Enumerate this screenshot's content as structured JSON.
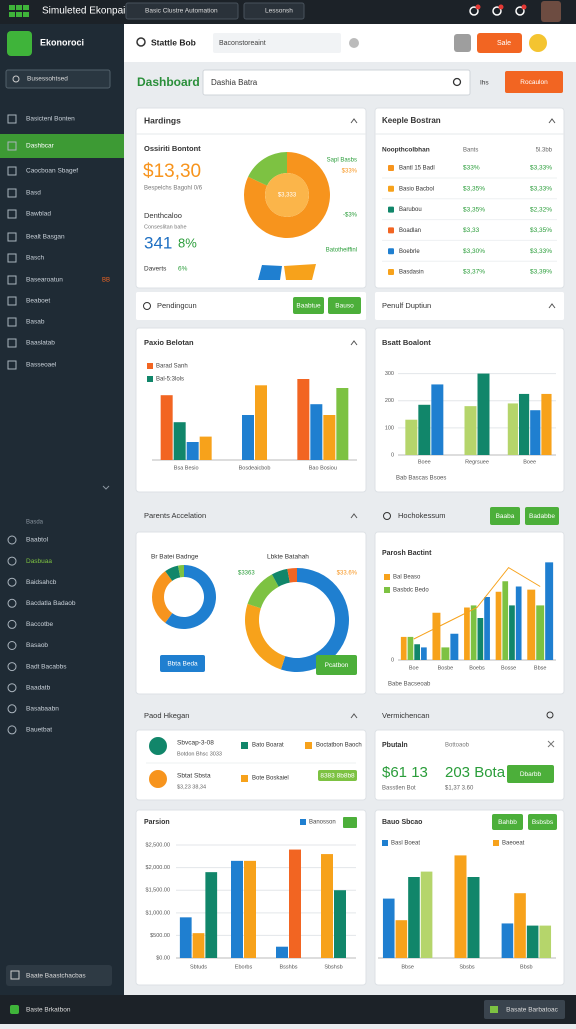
{
  "topbar": {
    "app_name": "Simuleted Ekonpai",
    "tabs": [
      "Basic Clustre Automation",
      "Lessonsh"
    ]
  },
  "sidebar": {
    "title": "Ekonoroci",
    "search": "Busessohtsed",
    "menu": [
      "Basictenl Bonten",
      "Dashbcar",
      "Caocboan Sbagef",
      "Basd",
      "Bawblad",
      "Bealt Basgan",
      "Basch",
      "Basearoatun",
      "Beaboet",
      "Basab",
      "Baaslatab",
      "Basseoael"
    ],
    "badge": "BB",
    "section": "Basda",
    "menu2": [
      "Baabtol",
      "Dasbuaa",
      "Baidsahcb",
      "Bacdatla Badaob",
      "Baccotbe",
      "Basaob",
      "Badt Bacabbs",
      "Baadatb",
      "Basabaabn",
      "Bauetbat"
    ],
    "footer": "Baate Baastchacbas"
  },
  "header": {
    "search_label": "Stattle Bob",
    "input": "Baconstoreaint",
    "button": "Sale"
  },
  "toolbar": {
    "title": "Dashboard",
    "search": "Dashia Batra",
    "link": "Ihs",
    "button": "Rocaulon"
  },
  "hardings": {
    "title": "Hardings",
    "subtitle": "Ossiriti Bontont",
    "amount": "$13,30",
    "amount_note": "Bespelchs Bagohl 0/6",
    "label2": "Denthcaloo",
    "note2": "Conseslitan bahe",
    "count": "341",
    "pct": "8%",
    "label3": "Daverts",
    "pct3": "6%",
    "legend": [
      "Sapl Basbs",
      "$33%",
      "-$3%",
      "Batotheiffinl"
    ],
    "chart": {
      "type": "pie",
      "center": "$3,333",
      "values": [
        82,
        18
      ],
      "colors": [
        "#f7941d",
        "#7dc242"
      ]
    }
  },
  "keeple": {
    "title": "Keeple Bostran",
    "header": [
      "Noopthcolbhan",
      "Bants",
      "5l.3bb"
    ],
    "icon_colors": [
      "#f7941d",
      "#f7a21b",
      "#11866a",
      "#f26522",
      "#1f7fd0",
      "#f7a21b"
    ],
    "rows": [
      [
        "Bantl 15 Badl",
        "$33%",
        "$3,33%"
      ],
      [
        "Basio Bacbol",
        "$3,35%",
        "$3,33%"
      ],
      [
        "Barubou",
        "$3,35%",
        "$2,32%"
      ],
      [
        "Boadlan",
        "$3,33",
        "$3,35%"
      ],
      [
        "Boebrle",
        "$3,30%",
        "$3,33%"
      ],
      [
        "Basdasin",
        "$3,37%",
        "$3,39%"
      ]
    ]
  },
  "pending": {
    "title": "Pendingcun",
    "buttons": [
      "Baabtue",
      "Bauso"
    ]
  },
  "penulf": {
    "title": "Penulf Duptiun"
  },
  "chart1": {
    "type": "bar",
    "title": "Paxio Belotan",
    "categories": [
      "Bsa Besio",
      "Bosdeaicbob",
      "Bao Bosiou"
    ],
    "ylim": [
      0,
      100
    ],
    "series": [
      {
        "name": "Barad Sanh",
        "color": "#f26522",
        "values": [
          72,
          null,
          90
        ]
      },
      {
        "name": "Bal-5:3lols",
        "color": "#11866a",
        "values": [
          42,
          null,
          null
        ]
      },
      {
        "color": "#1f7fd0",
        "values": [
          20,
          50,
          62
        ]
      },
      {
        "color": "#f7a21b",
        "values": [
          26,
          83,
          50
        ]
      },
      {
        "color": "#7dc242",
        "values": [
          null,
          null,
          80
        ]
      }
    ]
  },
  "chart2": {
    "type": "bar",
    "title": "Bsatt Boalont",
    "categories": [
      "Boee",
      "Regrsuee",
      "Boee"
    ],
    "ylim": [
      0,
      350
    ],
    "yticks": [
      0,
      100,
      200,
      300
    ],
    "footnote": "Bab Bascas Bsoes",
    "series": [
      {
        "color": "#b5d56b",
        "values": [
          130,
          180,
          190
        ]
      },
      {
        "color": "#11866a",
        "values": [
          185,
          300,
          225
        ]
      },
      {
        "color": "#1f7fd0",
        "values": [
          260,
          null,
          165
        ]
      },
      {
        "color": "#f7a21b",
        "values": [
          null,
          null,
          225
        ]
      }
    ]
  },
  "parents": {
    "title": "Parents Accelation",
    "buttons": [
      "Bbta Beda",
      "Pcatbon"
    ],
    "donut1": {
      "type": "pie",
      "title": "Br Batei Badnge",
      "values": [
        60,
        30,
        7,
        3
      ],
      "colors": [
        "#1f7fd0",
        "#f7941d",
        "#11866a",
        "#7dc242"
      ]
    },
    "donut2": {
      "type": "pie",
      "title": "Lbkte Batahah",
      "labels": [
        "$3363",
        "$33.6%"
      ],
      "values": [
        55,
        25,
        12,
        5,
        3
      ],
      "colors": [
        "#1f7fd0",
        "#f7a21b",
        "#7dc242",
        "#11866a",
        "#f26522"
      ]
    }
  },
  "hocho": {
    "title": "Hochokessum",
    "buttons": [
      "Baaba",
      "Badabbe"
    ]
  },
  "chart3": {
    "type": "bar",
    "title": "Parosh Bactint",
    "categories": [
      "Boe",
      "Bosbe",
      "Boebs",
      "Bosse",
      "Bbse"
    ],
    "ylim": [
      0,
      100
    ],
    "yticks": [
      0
    ],
    "footnote": "Babe Bacseoab",
    "series": [
      {
        "name": "Bal Beaso",
        "color": "#f7a21b",
        "values": [
          22,
          45,
          50,
          65,
          67
        ]
      },
      {
        "name": "Basbdc Bedo",
        "color": "#7dc242",
        "values": [
          22,
          12,
          52,
          75,
          52
        ]
      },
      {
        "color": "#11866a",
        "values": [
          15,
          null,
          40,
          52,
          null
        ]
      },
      {
        "color": "#1f7fd0",
        "values": [
          12,
          25,
          60,
          70,
          93
        ]
      }
    ],
    "line": {
      "color": "#f7a21b",
      "values": [
        20,
        35,
        50,
        88,
        70
      ]
    }
  },
  "paod": {
    "title": "Paod Hkegan",
    "items": [
      {
        "name": "Sbvcap-3-08",
        "note": "Botdon Bhsc 3033",
        "tag1": "Bato Boarat",
        "tag2": "Boctatbon Baoch"
      },
      {
        "name": "Sbtat Sbsta",
        "note": "$3,23 38,34",
        "tag1": "Bote Boskaiel",
        "tag2": "8383 8b8b8"
      }
    ]
  },
  "vermi": {
    "title": "Vermichencan",
    "label1": "Pbutaln",
    "label2": "Bottoaob",
    "big1": "$61 13",
    "big2": "203 Bota",
    "note1": "Basstlen Bot",
    "note2": "$1,37 3.60",
    "button": "Dbarbb"
  },
  "chart4": {
    "type": "bar",
    "title": "Parsion",
    "categories": [
      "Sbtuds",
      "Eborbs",
      "Bsshbs",
      "Sbshsb"
    ],
    "ylim": [
      0,
      2700
    ],
    "yticks": [
      {
        "value": 0,
        "label": "$0.00"
      },
      {
        "value": 500,
        "label": "$500.00"
      },
      {
        "value": 1000,
        "label": "$1,000.00"
      },
      {
        "value": 1500,
        "label": "$1,500.00"
      },
      {
        "value": 2000,
        "label": "$2,000.00"
      },
      {
        "value": 2500,
        "label": "$2,500.00"
      }
    ],
    "series": [
      {
        "name": "Banosson",
        "color": "#1f7fd0",
        "values": [
          900,
          2150,
          250,
          null
        ]
      },
      {
        "color": "#f7a21b",
        "values": [
          550,
          2150,
          null,
          2300
        ]
      },
      {
        "color": "#11866a",
        "values": [
          1900,
          null,
          null,
          1500
        ]
      },
      {
        "color": "#f26522",
        "values": [
          null,
          null,
          2400,
          null
        ]
      }
    ]
  },
  "chart5": {
    "type": "bar",
    "title": "Bauo Sbcao",
    "buttons": [
      "Bahbb",
      "Bsbsbs"
    ],
    "categories": [
      "Bbse",
      "Sbsbs",
      "Bbsb"
    ],
    "ylim": [
      0,
      100
    ],
    "series": [
      {
        "name": "Basl Boeat",
        "color": "#1f7fd0",
        "values": [
          55,
          null,
          32
        ]
      },
      {
        "name": "Baeoeat",
        "color": "#f7a21b",
        "values": [
          35,
          95,
          60
        ]
      },
      {
        "color": "#11866a",
        "values": [
          75,
          75,
          30
        ]
      },
      {
        "color": "#b5d56b",
        "values": [
          80,
          null,
          30
        ]
      }
    ]
  },
  "bottombar": {
    "left": "Baste Brkatbon",
    "right": "Basate Barbatoac"
  }
}
